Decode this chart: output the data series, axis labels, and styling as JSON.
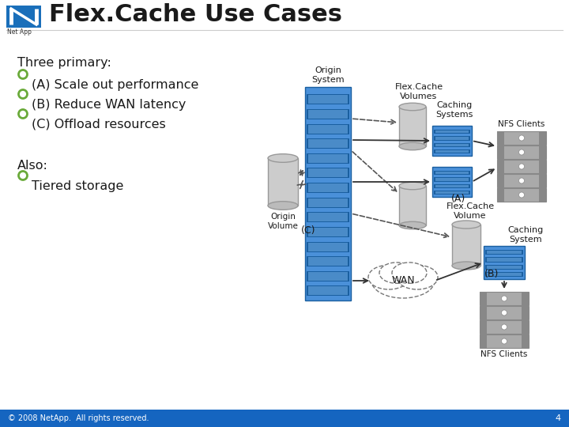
{
  "title": "Flex.Cache Use Cases",
  "title_fontsize": 22,
  "title_color": "#1a1a1a",
  "bg_color": "#ffffff",
  "footer_bg": "#1565c0",
  "footer_text": "© 2008 NetApp.  All rights reserved.",
  "footer_page": "4",
  "netapp_logo_color": "#1a6fba",
  "bullet_color": "#6aaa3a",
  "text_color": "#1a1a1a",
  "bullet_items": [
    {
      "label": "Three primary:",
      "bullet": false
    },
    {
      "label": "(A) Scale out performance",
      "bullet": true
    },
    {
      "label": "(B) Reduce WAN latency",
      "bullet": true
    },
    {
      "label": "(C) Offload resources",
      "bullet": true
    },
    {
      "label": "",
      "bullet": false
    },
    {
      "label": "Also:",
      "bullet": false
    },
    {
      "label": "Tiered storage",
      "bullet": true
    }
  ],
  "server_color": "#4a90d9",
  "server_dark": "#1a5fa0",
  "server_mid": "#3a7fc9",
  "server_stripe_light": "#7ab8f0",
  "gray_dark": "#888888",
  "gray_mid": "#aaaaaa",
  "gray_light": "#cccccc",
  "cyl_color": "#cccccc",
  "cyl_edge": "#999999",
  "arrow_color": "#333333",
  "dashed_arrow_color": "#555555",
  "labels": {
    "origin_system": "Origin\nSystem",
    "origin_volume": "Origin\nVolume",
    "flexcache_volumes": "Flex.Cache\nVolumes",
    "nfs_clients_top": "NFS Clients",
    "caching_systems": "Caching\nSystems",
    "label_A": "(A)",
    "label_C": "(C)",
    "wan": "WAN",
    "label_B": "(B)",
    "flexcache_volume": "Flex.Cache\nVolume",
    "caching_system_b": "Caching\nSystem",
    "nfs_clients_bottom": "NFS Clients"
  }
}
